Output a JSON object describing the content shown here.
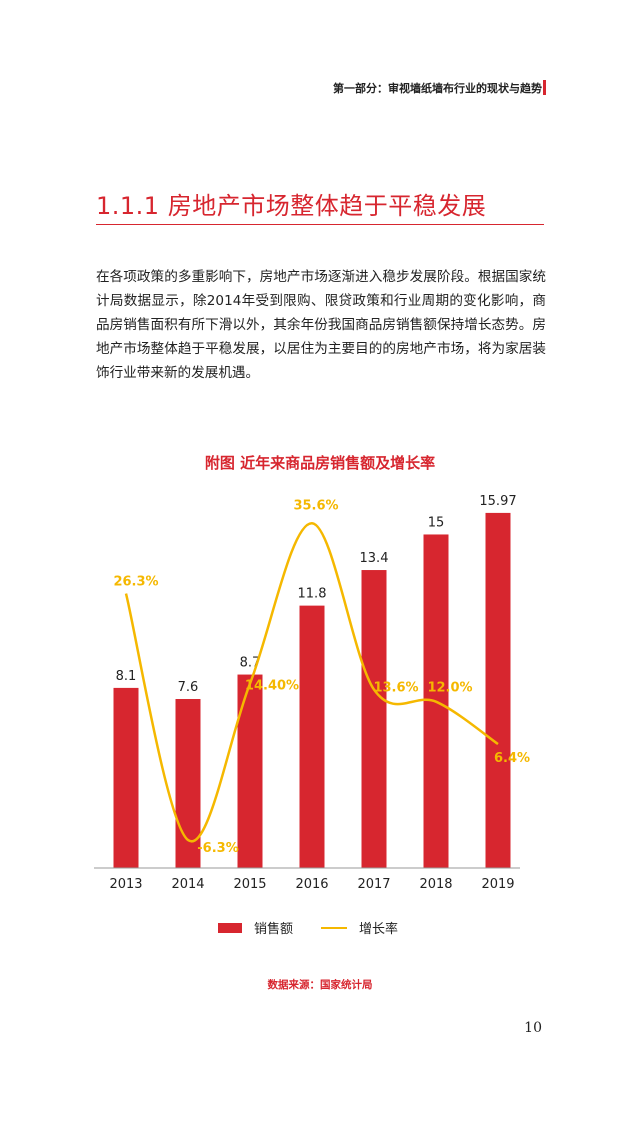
{
  "header": {
    "section": "第一部分：审视墙纸墙布行业的现状与趋势"
  },
  "page": {
    "title": "1.1.1 房地产市场整体趋于平稳发展",
    "paragraph": "在各项政策的多重影响下，房地产市场逐渐进入稳步发展阶段。根据国家统计局数据显示，除2014年受到限购、限贷政策和行业周期的变化影响，商品房销售面积有所下滑以外，其余年份我国商品房销售额保持增长态势。房地产市场整体趋于平稳发展，以居住为主要目的的房地产市场，将为家居装饰行业带来新的发展机遇。",
    "number": "10"
  },
  "source": "数据来源：国家统计局",
  "colors": {
    "accent": "#d7262f",
    "line": "#f5b800"
  },
  "chart_data": {
    "type": "bar",
    "title": "附图 近年来商品房销售额及增长率",
    "categories": [
      "2013",
      "2014",
      "2015",
      "2016",
      "2017",
      "2018",
      "2019"
    ],
    "series": [
      {
        "name": "销售额",
        "type": "bar",
        "values": [
          8.1,
          7.6,
          8.7,
          11.8,
          13.4,
          15,
          15.97
        ],
        "labels": [
          "8.1",
          "7.6",
          "8.7",
          "11.8",
          "13.4",
          "15",
          "15.97"
        ]
      },
      {
        "name": "增长率",
        "type": "line",
        "values": [
          26.3,
          -6.3,
          14.4,
          35.6,
          13.6,
          12.0,
          6.4
        ],
        "labels": [
          "26.3%",
          "-6.3%",
          "14.40%",
          "35.6%",
          "13.6%",
          "12.0%",
          "6.4%"
        ]
      }
    ],
    "ylim": [
      0,
      17
    ],
    "y2lim": [
      -10,
      40
    ],
    "legend_position": "bottom",
    "grid": false
  }
}
